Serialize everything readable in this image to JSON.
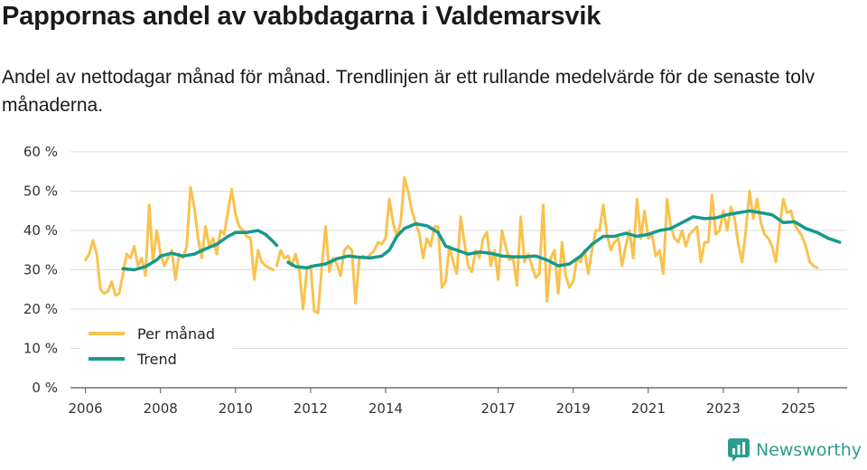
{
  "header": {
    "title": "Pappornas andel av vabbdagarna i Valdemarsvik",
    "subtitle": "Andel av nettodagar månad för månad. Trendlinjen är ett rullande medelvärde för de senaste tolv månaderna."
  },
  "brand": {
    "name": "Newsworthy"
  },
  "colors": {
    "monthly": "#f9c24e",
    "trend": "#17998a",
    "grid": "#dddddd",
    "brand": "#2a9d8f"
  },
  "chart_data": {
    "type": "line",
    "title": "Pappornas andel av vabbdagarna i Valdemarsvik",
    "xlabel": "",
    "ylabel": "",
    "ylim": [
      0,
      60
    ],
    "yticks": [
      0,
      10,
      20,
      30,
      40,
      50,
      60
    ],
    "ytick_labels": [
      "0 %",
      "10 %",
      "20 %",
      "30 %",
      "40 %",
      "50 %",
      "60 %"
    ],
    "xlim": [
      2005.6,
      2026.3
    ],
    "xticks": [
      2006,
      2008,
      2010,
      2012,
      2014,
      2017,
      2019,
      2021,
      2023,
      2025
    ],
    "xtick_labels": [
      "2006",
      "2008",
      "2010",
      "2012",
      "2014",
      "2017",
      "2019",
      "2021",
      "2023",
      "2025"
    ],
    "legend": {
      "position": "bottom-left",
      "entries": [
        "Per månad",
        "Trend"
      ]
    },
    "series": [
      {
        "name": "Per månad",
        "color": "#f9c24e",
        "segments": [
          [
            [
              2006.0,
              32.5
            ],
            [
              2006.1,
              34
            ],
            [
              2006.2,
              37.5
            ],
            [
              2006.3,
              34
            ],
            [
              2006.4,
              25
            ],
            [
              2006.5,
              24
            ],
            [
              2006.6,
              24.5
            ],
            [
              2006.7,
              27
            ],
            [
              2006.8,
              23.5
            ],
            [
              2006.9,
              24
            ],
            [
              2007.0,
              29
            ],
            [
              2007.1,
              34
            ],
            [
              2007.2,
              33
            ],
            [
              2007.3,
              36
            ],
            [
              2007.4,
              31
            ],
            [
              2007.5,
              33
            ],
            [
              2007.6,
              28.5
            ],
            [
              2007.7,
              46.5
            ],
            [
              2007.8,
              32
            ],
            [
              2007.9,
              40
            ],
            [
              2008.0,
              34
            ],
            [
              2008.1,
              31
            ],
            [
              2008.2,
              33
            ],
            [
              2008.3,
              35
            ],
            [
              2008.4,
              27.5
            ],
            [
              2008.5,
              34
            ],
            [
              2008.6,
              33
            ],
            [
              2008.7,
              36
            ],
            [
              2008.8,
              51
            ],
            [
              2008.9,
              46
            ],
            [
              2009.0,
              38
            ],
            [
              2009.1,
              33
            ],
            [
              2009.2,
              41
            ],
            [
              2009.3,
              36
            ],
            [
              2009.4,
              38
            ],
            [
              2009.5,
              34
            ],
            [
              2009.6,
              40
            ],
            [
              2009.7,
              39
            ],
            [
              2009.8,
              45
            ],
            [
              2009.9,
              50.5
            ],
            [
              2010.0,
              44
            ],
            [
              2010.1,
              41
            ],
            [
              2010.2,
              40
            ],
            [
              2010.3,
              38.5
            ],
            [
              2010.4,
              38
            ],
            [
              2010.5,
              27.5
            ],
            [
              2010.6,
              35
            ],
            [
              2010.7,
              32
            ],
            [
              2010.8,
              31
            ],
            [
              2010.9,
              30.5
            ],
            [
              2011.0,
              30
            ]
          ],
          [
            [
              2011.1,
              31
            ],
            [
              2011.2,
              35
            ],
            [
              2011.3,
              33
            ],
            [
              2011.4,
              33.5
            ],
            [
              2011.5,
              31
            ],
            [
              2011.6,
              34
            ],
            [
              2011.7,
              30
            ],
            [
              2011.8,
              20
            ],
            [
              2011.9,
              30
            ],
            [
              2012.0,
              31
            ],
            [
              2012.1,
              19.5
            ],
            [
              2012.2,
              19
            ],
            [
              2012.3,
              31
            ],
            [
              2012.4,
              41
            ],
            [
              2012.5,
              29.5
            ],
            [
              2012.6,
              33
            ],
            [
              2012.7,
              31.5
            ],
            [
              2012.8,
              28.5
            ],
            [
              2012.9,
              35
            ],
            [
              2013.0,
              36
            ],
            [
              2013.1,
              35
            ],
            [
              2013.2,
              21.5
            ],
            [
              2013.3,
              33
            ],
            [
              2013.4,
              33.5
            ],
            [
              2013.5,
              33
            ],
            [
              2013.6,
              34
            ],
            [
              2013.7,
              35
            ],
            [
              2013.8,
              37
            ],
            [
              2013.9,
              36.5
            ],
            [
              2014.0,
              38
            ],
            [
              2014.1,
              48
            ],
            [
              2014.2,
              42
            ],
            [
              2014.3,
              38.5
            ],
            [
              2014.4,
              42
            ],
            [
              2014.5,
              53.5
            ],
            [
              2014.6,
              50
            ],
            [
              2014.7,
              45
            ],
            [
              2014.8,
              42
            ],
            [
              2014.9,
              39
            ],
            [
              2015.0,
              33
            ],
            [
              2015.1,
              38
            ],
            [
              2015.2,
              36
            ],
            [
              2015.3,
              41
            ],
            [
              2015.4,
              41
            ],
            [
              2015.5,
              25.5
            ],
            [
              2015.6,
              27
            ],
            [
              2015.7,
              36
            ],
            [
              2015.8,
              32
            ],
            [
              2015.9,
              29
            ],
            [
              2016.0,
              43.5
            ],
            [
              2016.1,
              37
            ],
            [
              2016.2,
              31
            ],
            [
              2016.3,
              29.5
            ],
            [
              2016.4,
              35
            ],
            [
              2016.5,
              33
            ],
            [
              2016.6,
              38
            ],
            [
              2016.7,
              39.5
            ],
            [
              2016.8,
              31
            ],
            [
              2016.9,
              35
            ],
            [
              2017.0,
              27.5
            ],
            [
              2017.1,
              40
            ],
            [
              2017.2,
              36
            ],
            [
              2017.3,
              32.5
            ],
            [
              2017.4,
              33
            ],
            [
              2017.5,
              26
            ],
            [
              2017.6,
              43.5
            ],
            [
              2017.7,
              32
            ],
            [
              2017.8,
              34
            ],
            [
              2017.9,
              31
            ],
            [
              2018.0,
              28
            ],
            [
              2018.1,
              29
            ],
            [
              2018.2,
              46.5
            ],
            [
              2018.3,
              22
            ],
            [
              2018.4,
              33
            ],
            [
              2018.5,
              35
            ],
            [
              2018.6,
              24
            ],
            [
              2018.7,
              37
            ],
            [
              2018.8,
              28.5
            ],
            [
              2018.9,
              25.5
            ],
            [
              2019.0,
              27
            ],
            [
              2019.1,
              33
            ],
            [
              2019.2,
              32
            ],
            [
              2019.3,
              35
            ],
            [
              2019.4,
              29
            ],
            [
              2019.5,
              35
            ],
            [
              2019.6,
              40
            ],
            [
              2019.7,
              40
            ],
            [
              2019.8,
              46.5
            ],
            [
              2019.9,
              39
            ],
            [
              2020.0,
              35
            ],
            [
              2020.1,
              37
            ],
            [
              2020.2,
              38
            ],
            [
              2020.3,
              31
            ],
            [
              2020.4,
              36
            ],
            [
              2020.5,
              40
            ],
            [
              2020.6,
              33
            ],
            [
              2020.7,
              48
            ],
            [
              2020.8,
              38
            ],
            [
              2020.9,
              45
            ],
            [
              2021.0,
              38
            ],
            [
              2021.1,
              39
            ],
            [
              2021.2,
              33.5
            ],
            [
              2021.3,
              35
            ],
            [
              2021.4,
              29
            ],
            [
              2021.5,
              48
            ],
            [
              2021.6,
              41
            ],
            [
              2021.7,
              38
            ],
            [
              2021.8,
              37
            ],
            [
              2021.9,
              40
            ],
            [
              2022.0,
              36
            ],
            [
              2022.1,
              39
            ],
            [
              2022.2,
              40
            ],
            [
              2022.3,
              41
            ],
            [
              2022.4,
              32
            ],
            [
              2022.5,
              37
            ],
            [
              2022.6,
              37
            ],
            [
              2022.7,
              49
            ],
            [
              2022.8,
              39
            ],
            [
              2022.9,
              40
            ],
            [
              2023.0,
              45
            ],
            [
              2023.1,
              40
            ],
            [
              2023.2,
              46
            ],
            [
              2023.3,
              43
            ],
            [
              2023.4,
              36.5
            ],
            [
              2023.5,
              32
            ],
            [
              2023.6,
              40
            ],
            [
              2023.7,
              50
            ],
            [
              2023.8,
              43
            ],
            [
              2023.9,
              48
            ],
            [
              2024.0,
              42
            ],
            [
              2024.1,
              39
            ],
            [
              2024.2,
              38
            ],
            [
              2024.3,
              36
            ],
            [
              2024.4,
              32
            ],
            [
              2024.5,
              41
            ],
            [
              2024.6,
              48
            ],
            [
              2024.7,
              44.5
            ],
            [
              2024.8,
              45
            ],
            [
              2024.9,
              41.5
            ],
            [
              2025.0,
              40
            ],
            [
              2025.1,
              38.5
            ],
            [
              2025.2,
              36
            ],
            [
              2025.3,
              32
            ],
            [
              2025.4,
              31
            ],
            [
              2025.5,
              30.5
            ]
          ]
        ]
      },
      {
        "name": "Trend",
        "color": "#17998a",
        "segments": [
          [
            [
              2007.0,
              30.3
            ],
            [
              2007.3,
              30
            ],
            [
              2007.6,
              30.8
            ],
            [
              2007.9,
              32.5
            ],
            [
              2008.0,
              33.5
            ],
            [
              2008.3,
              34.2
            ],
            [
              2008.6,
              33.5
            ],
            [
              2008.9,
              34
            ],
            [
              2009.2,
              35.3
            ],
            [
              2009.5,
              36.5
            ],
            [
              2009.8,
              38.5
            ],
            [
              2010.0,
              39.5
            ],
            [
              2010.3,
              39.5
            ],
            [
              2010.6,
              40
            ],
            [
              2010.8,
              39
            ],
            [
              2011.0,
              37.2
            ],
            [
              2011.1,
              36.2
            ]
          ],
          [
            [
              2011.4,
              31.9
            ],
            [
              2011.6,
              30.8
            ],
            [
              2011.9,
              30.5
            ],
            [
              2012.1,
              31
            ],
            [
              2012.4,
              31.5
            ],
            [
              2012.7,
              32.8
            ],
            [
              2013.0,
              33.5
            ],
            [
              2013.3,
              33.2
            ],
            [
              2013.6,
              33
            ],
            [
              2013.9,
              33.5
            ],
            [
              2014.1,
              35
            ],
            [
              2014.3,
              38.5
            ],
            [
              2014.5,
              40.5
            ],
            [
              2014.8,
              41.7
            ],
            [
              2015.1,
              41.2
            ],
            [
              2015.4,
              39.5
            ],
            [
              2015.6,
              36
            ],
            [
              2015.9,
              35
            ],
            [
              2016.2,
              34
            ],
            [
              2016.5,
              34.5
            ],
            [
              2016.8,
              34.2
            ],
            [
              2017.1,
              33.5
            ],
            [
              2017.4,
              33.3
            ],
            [
              2017.7,
              33.3
            ],
            [
              2018.0,
              33.5
            ],
            [
              2018.3,
              32.5
            ],
            [
              2018.6,
              31
            ],
            [
              2018.9,
              31.5
            ],
            [
              2019.2,
              33.5
            ],
            [
              2019.5,
              36.5
            ],
            [
              2019.8,
              38.5
            ],
            [
              2020.1,
              38.5
            ],
            [
              2020.4,
              39.3
            ],
            [
              2020.7,
              38.5
            ],
            [
              2021.0,
              39
            ],
            [
              2021.3,
              40
            ],
            [
              2021.6,
              40.5
            ],
            [
              2021.9,
              42
            ],
            [
              2022.2,
              43.5
            ],
            [
              2022.5,
              43
            ],
            [
              2022.8,
              43.2
            ],
            [
              2023.1,
              44
            ],
            [
              2023.4,
              44.5
            ],
            [
              2023.7,
              45
            ],
            [
              2024.0,
              44.5
            ],
            [
              2024.3,
              44
            ],
            [
              2024.6,
              42
            ],
            [
              2024.9,
              42.2
            ],
            [
              2025.2,
              40.5
            ],
            [
              2025.5,
              39.5
            ],
            [
              2025.8,
              38
            ],
            [
              2026.1,
              37
            ]
          ]
        ]
      }
    ]
  }
}
